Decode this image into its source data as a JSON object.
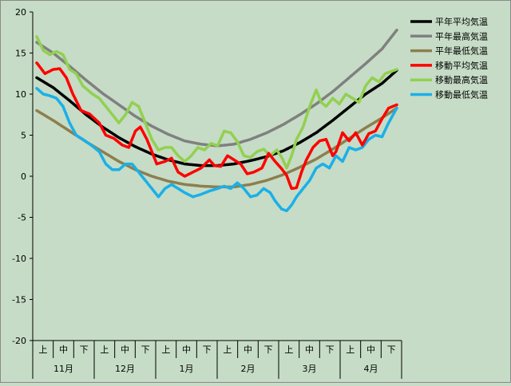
{
  "chart_data": {
    "type": "line",
    "ylim": [
      -20,
      20
    ],
    "yticks": [
      20,
      15,
      10,
      5,
      0,
      -5,
      -10,
      -15,
      -20
    ],
    "months": [
      "11月",
      "12月",
      "1月",
      "2月",
      "3月",
      "4月"
    ],
    "periods": [
      "上",
      "中",
      "下"
    ],
    "n_points": 181,
    "grid": false,
    "legend_position": "top-right",
    "series": [
      {
        "name": "平年平均気温",
        "color": "#000000",
        "anchors": [
          [
            0,
            12.0
          ],
          [
            10,
            10.8
          ],
          [
            20,
            9.2
          ],
          [
            30,
            7.5
          ],
          [
            40,
            6.0
          ],
          [
            50,
            4.7
          ],
          [
            60,
            3.6
          ],
          [
            70,
            2.7
          ],
          [
            80,
            2.0
          ],
          [
            90,
            1.5
          ],
          [
            100,
            1.3
          ],
          [
            110,
            1.3
          ],
          [
            120,
            1.5
          ],
          [
            130,
            1.9
          ],
          [
            140,
            2.4
          ],
          [
            150,
            3.1
          ],
          [
            160,
            4.1
          ],
          [
            170,
            5.3
          ],
          [
            180,
            6.8
          ],
          [
            190,
            8.4
          ],
          [
            200,
            10.0
          ],
          [
            210,
            11.3
          ],
          [
            219,
            12.9
          ]
        ]
      },
      {
        "name": "平年最高気温",
        "color": "#808080",
        "anchors": [
          [
            0,
            16.3
          ],
          [
            10,
            15.0
          ],
          [
            20,
            13.4
          ],
          [
            30,
            11.7
          ],
          [
            40,
            10.1
          ],
          [
            50,
            8.7
          ],
          [
            60,
            7.3
          ],
          [
            70,
            6.1
          ],
          [
            80,
            5.1
          ],
          [
            90,
            4.3
          ],
          [
            100,
            3.9
          ],
          [
            110,
            3.7
          ],
          [
            120,
            3.9
          ],
          [
            130,
            4.5
          ],
          [
            140,
            5.3
          ],
          [
            150,
            6.3
          ],
          [
            160,
            7.5
          ],
          [
            170,
            8.8
          ],
          [
            180,
            10.3
          ],
          [
            190,
            12.0
          ],
          [
            200,
            13.7
          ],
          [
            210,
            15.5
          ],
          [
            219,
            17.8
          ]
        ]
      },
      {
        "name": "平年最低気温",
        "color": "#8c7f4f",
        "anchors": [
          [
            0,
            8.0
          ],
          [
            10,
            6.8
          ],
          [
            20,
            5.5
          ],
          [
            30,
            4.2
          ],
          [
            40,
            3.0
          ],
          [
            50,
            1.8
          ],
          [
            60,
            0.8
          ],
          [
            70,
            0.0
          ],
          [
            80,
            -0.6
          ],
          [
            90,
            -1.0
          ],
          [
            100,
            -1.2
          ],
          [
            110,
            -1.3
          ],
          [
            120,
            -1.3
          ],
          [
            130,
            -1.0
          ],
          [
            140,
            -0.5
          ],
          [
            150,
            0.2
          ],
          [
            160,
            1.1
          ],
          [
            170,
            2.1
          ],
          [
            180,
            3.3
          ],
          [
            190,
            4.6
          ],
          [
            200,
            5.9
          ],
          [
            210,
            7.1
          ],
          [
            219,
            8.3
          ]
        ]
      },
      {
        "name": "移動平均気温",
        "color": "#ff0000",
        "anchors": [
          [
            0,
            13.8
          ],
          [
            5,
            12.5
          ],
          [
            10,
            13.0
          ],
          [
            14,
            13.1
          ],
          [
            18,
            12.0
          ],
          [
            22,
            10.0
          ],
          [
            27,
            8.0
          ],
          [
            32,
            7.6
          ],
          [
            38,
            6.5
          ],
          [
            42,
            5.0
          ],
          [
            47,
            4.6
          ],
          [
            52,
            3.8
          ],
          [
            56,
            3.5
          ],
          [
            60,
            5.5
          ],
          [
            63,
            6.0
          ],
          [
            67,
            4.5
          ],
          [
            70,
            3.0
          ],
          [
            73,
            1.5
          ],
          [
            78,
            1.8
          ],
          [
            82,
            2.2
          ],
          [
            86,
            0.5
          ],
          [
            90,
            0.0
          ],
          [
            95,
            0.5
          ],
          [
            100,
            1.0
          ],
          [
            105,
            2.0
          ],
          [
            108,
            1.3
          ],
          [
            112,
            1.2
          ],
          [
            116,
            2.5
          ],
          [
            120,
            2.0
          ],
          [
            124,
            1.5
          ],
          [
            128,
            0.3
          ],
          [
            132,
            0.5
          ],
          [
            137,
            1.0
          ],
          [
            141,
            2.8
          ],
          [
            145,
            1.8
          ],
          [
            149,
            0.9
          ],
          [
            152,
            0.1
          ],
          [
            155,
            -1.5
          ],
          [
            158,
            -1.4
          ],
          [
            161,
            0.5
          ],
          [
            164,
            2.0
          ],
          [
            168,
            3.5
          ],
          [
            172,
            4.3
          ],
          [
            176,
            4.5
          ],
          [
            178,
            3.5
          ],
          [
            180,
            2.5
          ],
          [
            182,
            3.0
          ],
          [
            186,
            5.3
          ],
          [
            190,
            4.3
          ],
          [
            194,
            5.3
          ],
          [
            198,
            3.8
          ],
          [
            202,
            5.2
          ],
          [
            206,
            5.5
          ],
          [
            210,
            7.0
          ],
          [
            214,
            8.3
          ],
          [
            219,
            8.7
          ]
        ]
      },
      {
        "name": "移動最高気温",
        "color": "#92d050",
        "anchors": [
          [
            0,
            17.0
          ],
          [
            4,
            15.3
          ],
          [
            8,
            14.8
          ],
          [
            12,
            15.2
          ],
          [
            16,
            14.8
          ],
          [
            20,
            13.0
          ],
          [
            24,
            12.5
          ],
          [
            28,
            11.0
          ],
          [
            34,
            10.0
          ],
          [
            38,
            9.5
          ],
          [
            42,
            8.5
          ],
          [
            46,
            7.5
          ],
          [
            50,
            6.5
          ],
          [
            54,
            7.5
          ],
          [
            58,
            9.0
          ],
          [
            62,
            8.5
          ],
          [
            66,
            6.5
          ],
          [
            70,
            4.5
          ],
          [
            74,
            3.2
          ],
          [
            78,
            3.5
          ],
          [
            82,
            3.5
          ],
          [
            86,
            2.5
          ],
          [
            90,
            1.8
          ],
          [
            94,
            2.5
          ],
          [
            98,
            3.5
          ],
          [
            102,
            3.2
          ],
          [
            106,
            4.0
          ],
          [
            110,
            3.7
          ],
          [
            114,
            5.5
          ],
          [
            118,
            5.3
          ],
          [
            122,
            4.2
          ],
          [
            126,
            2.5
          ],
          [
            130,
            2.3
          ],
          [
            134,
            3.0
          ],
          [
            138,
            3.3
          ],
          [
            142,
            2.5
          ],
          [
            146,
            3.2
          ],
          [
            149,
            2.3
          ],
          [
            152,
            1.0
          ],
          [
            155,
            2.5
          ],
          [
            158,
            4.5
          ],
          [
            162,
            6.0
          ],
          [
            166,
            8.5
          ],
          [
            170,
            10.5
          ],
          [
            173,
            9.0
          ],
          [
            176,
            8.5
          ],
          [
            180,
            9.5
          ],
          [
            184,
            8.8
          ],
          [
            188,
            10.0
          ],
          [
            192,
            9.5
          ],
          [
            196,
            9.0
          ],
          [
            200,
            11.0
          ],
          [
            204,
            12.0
          ],
          [
            208,
            11.5
          ],
          [
            212,
            12.5
          ],
          [
            219,
            13.0
          ]
        ]
      },
      {
        "name": "移動最低気温",
        "color": "#1ab0e8",
        "anchors": [
          [
            0,
            10.7
          ],
          [
            4,
            10.0
          ],
          [
            8,
            9.8
          ],
          [
            12,
            9.5
          ],
          [
            16,
            8.5
          ],
          [
            20,
            6.5
          ],
          [
            24,
            5.0
          ],
          [
            28,
            4.5
          ],
          [
            33,
            3.8
          ],
          [
            38,
            3.0
          ],
          [
            42,
            1.5
          ],
          [
            46,
            0.8
          ],
          [
            50,
            0.8
          ],
          [
            54,
            1.5
          ],
          [
            58,
            1.5
          ],
          [
            62,
            0.5
          ],
          [
            66,
            -0.5
          ],
          [
            70,
            -1.5
          ],
          [
            74,
            -2.5
          ],
          [
            78,
            -1.5
          ],
          [
            82,
            -1.0
          ],
          [
            86,
            -1.5
          ],
          [
            90,
            -2.0
          ],
          [
            95,
            -2.5
          ],
          [
            100,
            -2.2
          ],
          [
            105,
            -1.8
          ],
          [
            110,
            -1.5
          ],
          [
            114,
            -1.2
          ],
          [
            118,
            -1.5
          ],
          [
            122,
            -0.8
          ],
          [
            126,
            -1.5
          ],
          [
            130,
            -2.5
          ],
          [
            134,
            -2.3
          ],
          [
            138,
            -1.5
          ],
          [
            142,
            -2.0
          ],
          [
            145,
            -3.0
          ],
          [
            149,
            -4.0
          ],
          [
            152,
            -4.2
          ],
          [
            155,
            -3.5
          ],
          [
            158,
            -2.5
          ],
          [
            162,
            -1.5
          ],
          [
            166,
            -0.5
          ],
          [
            170,
            1.0
          ],
          [
            174,
            1.5
          ],
          [
            178,
            1.0
          ],
          [
            182,
            2.5
          ],
          [
            186,
            1.8
          ],
          [
            190,
            3.5
          ],
          [
            194,
            3.2
          ],
          [
            198,
            3.5
          ],
          [
            202,
            4.5
          ],
          [
            206,
            5.0
          ],
          [
            210,
            4.8
          ],
          [
            214,
            6.5
          ],
          [
            219,
            8.3
          ]
        ]
      }
    ]
  }
}
